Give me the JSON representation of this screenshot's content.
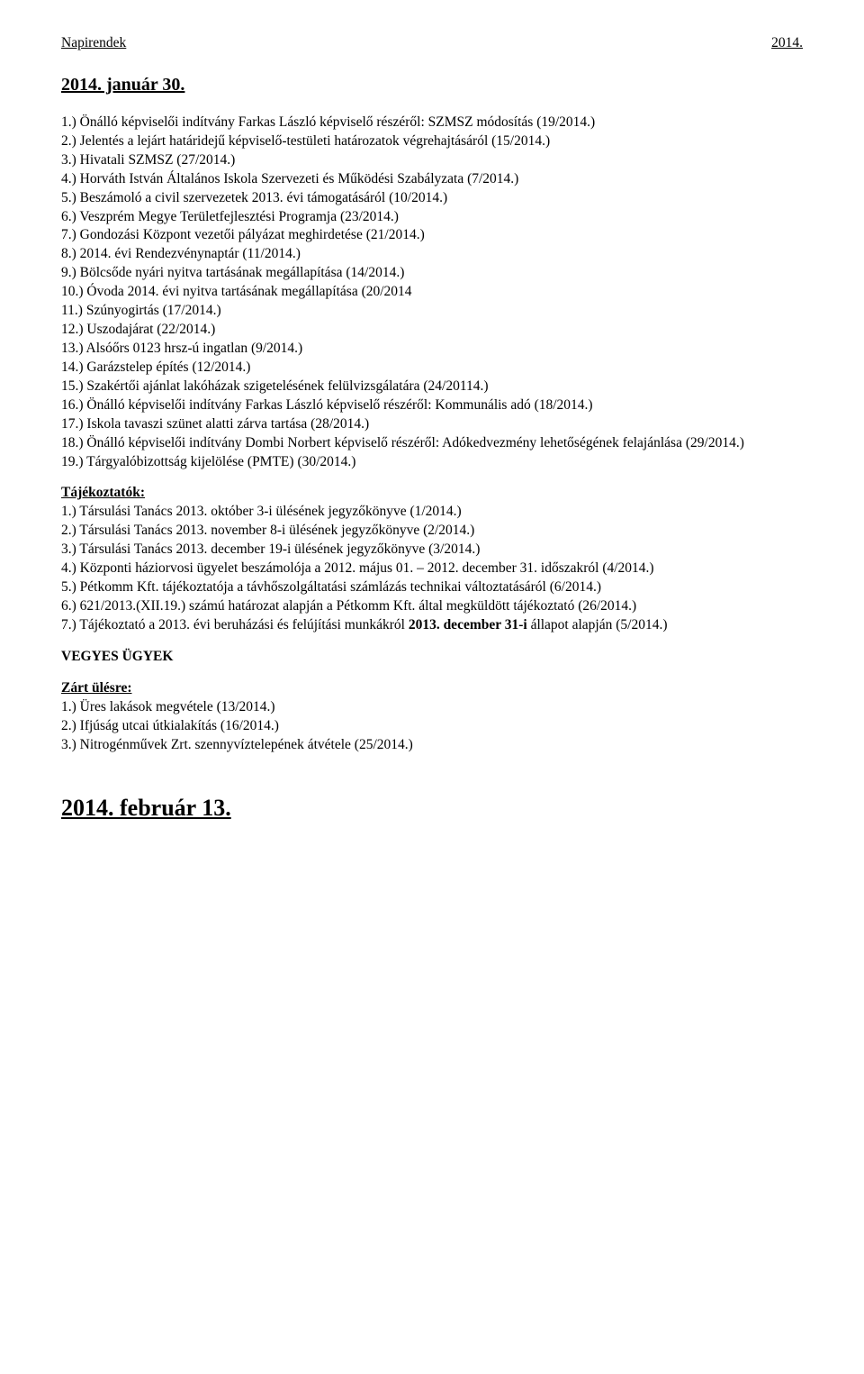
{
  "header": {
    "left": "Napirendek",
    "right": "2014."
  },
  "title1": "2014. január 30.",
  "main_items": [
    "1.) Önálló képviselői indítvány Farkas László képviselő részéről: SZMSZ módosítás (19/2014.)",
    "2.) Jelentés a lejárt határidejű képviselő-testületi határozatok végrehajtásáról (15/2014.)",
    "3.) Hivatali SZMSZ (27/2014.)",
    "4.) Horváth István Általános Iskola Szervezeti és Működési Szabályzata (7/2014.)",
    "5.) Beszámoló a civil szervezetek 2013. évi támogatásáról (10/2014.)",
    "6.) Veszprém Megye Területfejlesztési Programja (23/2014.)",
    "7.) Gondozási Központ vezetői pályázat meghirdetése (21/2014.)",
    "8.) 2014. évi Rendezvénynaptár (11/2014.)",
    "9.) Bölcsőde nyári nyitva tartásának megállapítása (14/2014.)",
    "10.) Óvoda 2014. évi nyitva tartásának megállapítása (20/2014",
    "11.) Szúnyogirtás (17/2014.)",
    "12.) Uszodajárat (22/2014.)",
    "13.) Alsóőrs 0123 hrsz-ú ingatlan (9/2014.)",
    "14.) Garázstelep építés (12/2014.)",
    "15.) Szakértői ajánlat lakóházak szigetelésének felülvizsgálatára (24/20114.)",
    "16.) Önálló képviselői indítvány Farkas László képviselő részéről: Kommunális adó (18/2014.)",
    "17.) Iskola tavaszi szünet alatti zárva tartása (28/2014.)",
    "18.) Önálló képviselői indítvány Dombi Norbert képviselő részéről: Adókedvezmény lehetőségének felajánlása (29/2014.)",
    "19.) Tárgyalóbizottság kijelölése (PMTE) (30/2014.)"
  ],
  "tajekoztatok_label": "Tájékoztatók:",
  "tajekoztatok_items": [
    "1.) Társulási Tanács 2013. október 3-i ülésének jegyzőkönyve (1/2014.)",
    "2.) Társulási Tanács 2013. november 8-i ülésének jegyzőkönyve (2/2014.)",
    "3.) Társulási Tanács 2013. december 19-i ülésének jegyzőkönyve (3/2014.)",
    "4.) Központi háziorvosi ügyelet beszámolója a 2012. május 01. – 2012. december 31. időszakról (4/2014.)",
    "5.) Pétkomm Kft. tájékoztatója a távhőszolgáltatási számlázás technikai változtatásáról (6/2014.)",
    "6.) 621/2013.(XII.19.) számú határozat alapján a Pétkomm Kft. által megküldött tájékoztató (26/2014.)"
  ],
  "tajekoztatok_item7_prefix": "7.) Tájékoztató a 2013. évi beruházási és felújítási munkákról ",
  "tajekoztatok_item7_bold": "2013. december 31-i ",
  "tajekoztatok_item7_suffix": "állapot alapján (5/2014.)",
  "vegyes_label": "VEGYES ÜGYEK",
  "zart_label": "Zárt ülésre:",
  "zart_items": [
    "1.) Üres lakások megvétele (13/2014.)",
    "2.) Ifjúság utcai útkialakítás (16/2014.)",
    "3.) Nitrogénművek Zrt. szennyvíztelepének átvétele (25/2014.)"
  ],
  "title2": "2014. február 13."
}
